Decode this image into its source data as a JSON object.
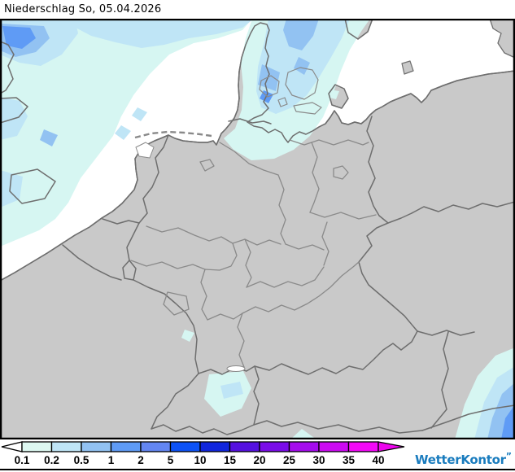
{
  "title": "Niederschlag So, 05.04.2026",
  "legend": {
    "tick_labels": [
      "0.1",
      "0.2",
      "0.5",
      "1",
      "2",
      "5",
      "10",
      "15",
      "20",
      "25",
      "30",
      "35",
      "40"
    ],
    "box_colors": [
      "#ddf8f1",
      "#bfe5f6",
      "#92c2f2",
      "#5f9bf5",
      "#6386f2",
      "#0d52f5",
      "#1126dd",
      "#5511e0",
      "#7a0ce8",
      "#a50ced",
      "#cc0af2",
      "#f408f8"
    ],
    "underflow_color": "#ffffff",
    "overflow_color": "#ee06ee"
  },
  "palette": {
    "sea": "#ffffff",
    "land": "#c9c9c9",
    "country_border": "#6e6e6e",
    "state_border": "#8a8a8a",
    "frame": "#000000",
    "c1": "#d6f6f2",
    "c2": "#bfe5f6",
    "c3": "#92c2f2",
    "c4": "#5f9bf5"
  },
  "branding": {
    "logo_text": "WetterKontor",
    "logo_mark": "”",
    "logo_color": "#1a7cbe"
  }
}
